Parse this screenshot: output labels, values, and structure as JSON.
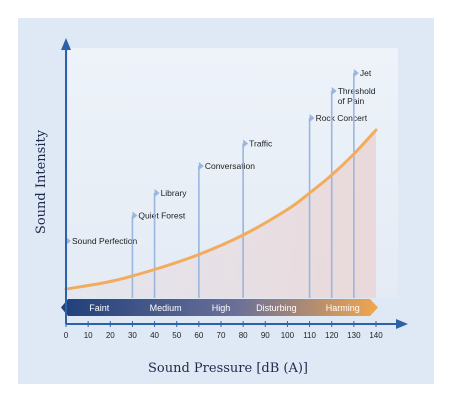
{
  "chart_data": {
    "type": "line",
    "title": "",
    "xlabel": "Sound Pressure [dB (A)]",
    "ylabel": "Sound Intensity",
    "x_ticks": [
      "0",
      "10",
      "20",
      "30",
      "40",
      "50",
      "60",
      "70",
      "80",
      "90",
      "100",
      "110",
      "120",
      "130",
      "140"
    ],
    "xlim": [
      0,
      140
    ],
    "curve": [
      [
        0,
        0.06
      ],
      [
        20,
        0.11
      ],
      [
        40,
        0.19
      ],
      [
        60,
        0.29
      ],
      [
        80,
        0.42
      ],
      [
        100,
        0.59
      ],
      [
        110,
        0.7
      ],
      [
        120,
        0.82
      ],
      [
        130,
        0.96
      ],
      [
        140,
        1.12
      ]
    ],
    "events": [
      {
        "label": "Sound Perfection",
        "db": 0,
        "level": 0.38
      },
      {
        "label": "Quiet Forest",
        "db": 30,
        "level": 0.55
      },
      {
        "label": "Library",
        "db": 40,
        "level": 0.7
      },
      {
        "label": "Conversation",
        "db": 60,
        "level": 0.88
      },
      {
        "label": "Traffic",
        "db": 80,
        "level": 1.03
      },
      {
        "label": "Rock Concert",
        "db": 110,
        "level": 1.2
      },
      {
        "label": "Threshold of Pain",
        "label_lines": [
          "Threshold",
          "of Pain"
        ],
        "db": 120,
        "level": 1.38
      },
      {
        "label": "Jet",
        "db": 130,
        "level": 1.5
      }
    ],
    "bands": [
      {
        "label": "Faint",
        "from": 0,
        "to": 30
      },
      {
        "label": "Medium",
        "from": 30,
        "to": 60
      },
      {
        "label": "High",
        "from": 60,
        "to": 80
      },
      {
        "label": "Disturbing",
        "from": 80,
        "to": 110
      },
      {
        "label": "Harming",
        "from": 110,
        "to": 140
      }
    ],
    "colors": {
      "background": "#dfe9f5",
      "axis": "#2e62a8",
      "curve": "#f2ac5e",
      "event_line": "#9ab6de",
      "area": "#e8d8dc",
      "band_start": "#1f3f7a",
      "band_mid": "#6a6f98",
      "band_end": "#f1a64e"
    },
    "grid": false,
    "legend": "none"
  }
}
